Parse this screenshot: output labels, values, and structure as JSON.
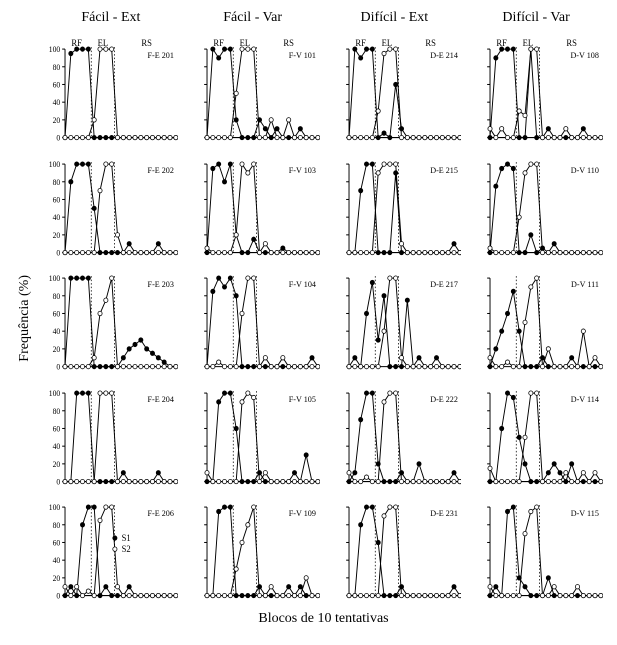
{
  "y_label": "Frequência (%)",
  "x_label": "Blocos de 10 tentativas",
  "col_headers": [
    "Fácil - Ext",
    "Fácil - Var",
    "Difícil - Ext",
    "Difícil - Var"
  ],
  "phase_labels": [
    "RF",
    "EL",
    "RS"
  ],
  "legend": {
    "s1": "S1",
    "s2": "S2",
    "show_in_panel": [
      4,
      0
    ]
  },
  "style": {
    "background_color": "#ffffff",
    "axis_color": "#000000",
    "s1_marker": {
      "fill": "#000000",
      "stroke": "#000000",
      "radius": 2.2
    },
    "s2_marker": {
      "fill": "#ffffff",
      "stroke": "#000000",
      "radius": 2.2
    },
    "line_color": "#000000",
    "line_width": 1.0,
    "divider_color": "#000000",
    "divider_dash": "1.5,2",
    "ylim": [
      0,
      100
    ],
    "ytick_step": 20,
    "n_points": 20,
    "phase_boundaries": [
      5,
      9
    ]
  },
  "panels": [
    [
      {
        "id": "F-E 201",
        "s1": [
          0,
          95,
          100,
          100,
          100,
          0,
          0,
          0,
          0,
          0,
          0,
          0,
          0,
          0,
          0,
          0,
          0,
          0,
          0,
          0
        ],
        "s2": [
          0,
          0,
          0,
          0,
          0,
          20,
          100,
          100,
          100,
          0,
          0,
          0,
          0,
          0,
          0,
          0,
          0,
          0,
          0,
          0
        ]
      },
      {
        "id": "F-V 101",
        "s1": [
          0,
          100,
          90,
          100,
          100,
          20,
          0,
          0,
          0,
          20,
          10,
          0,
          10,
          0,
          0,
          0,
          10,
          0,
          0,
          0
        ],
        "s2": [
          0,
          0,
          0,
          0,
          0,
          50,
          100,
          100,
          100,
          0,
          0,
          20,
          0,
          0,
          20,
          0,
          0,
          0,
          0,
          0
        ]
      },
      {
        "id": "D-E 214",
        "s1": [
          0,
          100,
          90,
          100,
          100,
          0,
          5,
          0,
          60,
          10,
          0,
          0,
          0,
          0,
          0,
          0,
          0,
          0,
          0,
          0
        ],
        "s2": [
          0,
          0,
          0,
          0,
          0,
          30,
          95,
          100,
          100,
          0,
          0,
          0,
          0,
          0,
          0,
          0,
          0,
          0,
          0,
          0
        ]
      },
      {
        "id": "D-V 108",
        "s1": [
          0,
          90,
          100,
          100,
          100,
          0,
          0,
          100,
          0,
          0,
          10,
          0,
          0,
          0,
          0,
          0,
          10,
          0,
          0,
          0
        ],
        "s2": [
          10,
          0,
          10,
          0,
          0,
          30,
          25,
          100,
          100,
          0,
          0,
          0,
          0,
          10,
          0,
          0,
          0,
          0,
          0,
          0
        ]
      }
    ],
    [
      {
        "id": "F-E 202",
        "s1": [
          0,
          80,
          100,
          100,
          100,
          50,
          0,
          0,
          0,
          0,
          0,
          10,
          0,
          0,
          0,
          0,
          10,
          0,
          0,
          0
        ],
        "s2": [
          0,
          0,
          0,
          0,
          0,
          0,
          70,
          100,
          100,
          20,
          0,
          0,
          0,
          0,
          0,
          0,
          0,
          0,
          0,
          0
        ]
      },
      {
        "id": "F-V 103",
        "s1": [
          0,
          95,
          100,
          80,
          100,
          20,
          0,
          0,
          15,
          0,
          0,
          0,
          0,
          5,
          0,
          0,
          0,
          0,
          0,
          0
        ],
        "s2": [
          5,
          0,
          0,
          0,
          0,
          20,
          100,
          90,
          100,
          0,
          10,
          0,
          0,
          0,
          0,
          0,
          0,
          0,
          0,
          0
        ]
      },
      {
        "id": "D-E 215",
        "s1": [
          0,
          0,
          70,
          100,
          100,
          0,
          0,
          0,
          90,
          0,
          0,
          0,
          0,
          0,
          0,
          0,
          0,
          0,
          10,
          0
        ],
        "s2": [
          0,
          0,
          0,
          0,
          0,
          90,
          100,
          100,
          100,
          10,
          0,
          0,
          0,
          0,
          0,
          0,
          0,
          0,
          0,
          0
        ]
      },
      {
        "id": "D-V 110",
        "s1": [
          0,
          75,
          95,
          100,
          95,
          0,
          0,
          20,
          0,
          5,
          0,
          10,
          0,
          0,
          0,
          0,
          0,
          0,
          0,
          0
        ],
        "s2": [
          5,
          0,
          0,
          0,
          0,
          40,
          90,
          100,
          100,
          0,
          0,
          0,
          0,
          0,
          0,
          0,
          0,
          0,
          0,
          0
        ]
      }
    ],
    [
      {
        "id": "F-E 203",
        "s1": [
          0,
          100,
          100,
          100,
          100,
          0,
          0,
          0,
          0,
          0,
          10,
          20,
          25,
          30,
          20,
          15,
          10,
          5,
          0,
          0
        ],
        "s2": [
          0,
          0,
          0,
          0,
          0,
          10,
          60,
          75,
          100,
          0,
          0,
          0,
          0,
          0,
          0,
          0,
          0,
          0,
          0,
          0
        ]
      },
      {
        "id": "F-V 104",
        "s1": [
          0,
          85,
          100,
          90,
          100,
          80,
          0,
          0,
          0,
          0,
          0,
          0,
          0,
          0,
          0,
          0,
          0,
          0,
          10,
          0
        ],
        "s2": [
          0,
          0,
          5,
          0,
          0,
          0,
          60,
          100,
          100,
          0,
          10,
          0,
          0,
          10,
          0,
          0,
          0,
          0,
          0,
          0
        ]
      },
      {
        "id": "D-E 217",
        "s1": [
          0,
          10,
          0,
          60,
          95,
          30,
          80,
          0,
          0,
          0,
          75,
          0,
          10,
          0,
          0,
          10,
          0,
          0,
          0,
          0
        ],
        "s2": [
          0,
          0,
          0,
          0,
          0,
          0,
          40,
          100,
          100,
          10,
          0,
          0,
          0,
          0,
          0,
          0,
          0,
          0,
          0,
          0
        ]
      },
      {
        "id": "D-V 111",
        "s1": [
          0,
          20,
          40,
          60,
          85,
          40,
          0,
          0,
          0,
          10,
          0,
          0,
          0,
          0,
          10,
          0,
          0,
          0,
          0,
          0
        ],
        "s2": [
          10,
          0,
          0,
          5,
          0,
          0,
          50,
          90,
          100,
          0,
          20,
          0,
          0,
          0,
          0,
          0,
          40,
          0,
          10,
          0
        ]
      }
    ],
    [
      {
        "id": "F-E 204",
        "s1": [
          0,
          0,
          100,
          100,
          100,
          0,
          0,
          0,
          0,
          0,
          10,
          0,
          0,
          0,
          0,
          0,
          10,
          0,
          0,
          0
        ],
        "s2": [
          0,
          0,
          0,
          0,
          0,
          0,
          100,
          100,
          100,
          0,
          0,
          0,
          0,
          0,
          0,
          0,
          0,
          0,
          0,
          0
        ]
      },
      {
        "id": "F-V 105",
        "s1": [
          0,
          0,
          90,
          100,
          100,
          60,
          0,
          0,
          0,
          10,
          0,
          0,
          0,
          0,
          0,
          10,
          0,
          30,
          0,
          0
        ],
        "s2": [
          10,
          0,
          0,
          0,
          0,
          0,
          90,
          100,
          95,
          0,
          10,
          0,
          0,
          0,
          0,
          0,
          0,
          0,
          0,
          0
        ]
      },
      {
        "id": "D-E 222",
        "s1": [
          0,
          10,
          70,
          100,
          100,
          20,
          0,
          0,
          0,
          10,
          0,
          0,
          20,
          0,
          0,
          0,
          0,
          0,
          10,
          0
        ],
        "s2": [
          10,
          0,
          0,
          5,
          0,
          0,
          90,
          100,
          100,
          0,
          0,
          0,
          0,
          0,
          0,
          0,
          0,
          0,
          0,
          0
        ]
      },
      {
        "id": "D-V 114",
        "s1": [
          0,
          0,
          60,
          100,
          95,
          50,
          20,
          0,
          0,
          0,
          10,
          20,
          10,
          0,
          20,
          0,
          0,
          0,
          0,
          0
        ],
        "s2": [
          15,
          0,
          0,
          0,
          0,
          0,
          50,
          100,
          100,
          0,
          0,
          0,
          0,
          10,
          0,
          0,
          10,
          0,
          10,
          0
        ]
      }
    ],
    [
      {
        "id": "F-E 206",
        "s1": [
          0,
          10,
          0,
          80,
          100,
          100,
          0,
          10,
          0,
          0,
          0,
          10,
          0,
          0,
          0,
          0,
          0,
          0,
          0,
          0
        ],
        "s2": [
          10,
          0,
          10,
          0,
          5,
          0,
          85,
          100,
          100,
          10,
          0,
          0,
          0,
          0,
          0,
          0,
          0,
          0,
          0,
          0
        ]
      },
      {
        "id": "F-V 109",
        "s1": [
          0,
          0,
          95,
          100,
          100,
          0,
          0,
          0,
          0,
          10,
          0,
          0,
          0,
          0,
          10,
          0,
          10,
          0,
          0,
          0
        ],
        "s2": [
          0,
          0,
          0,
          0,
          0,
          30,
          60,
          80,
          100,
          0,
          0,
          10,
          0,
          0,
          0,
          0,
          0,
          20,
          0,
          0
        ]
      },
      {
        "id": "D-E 231",
        "s1": [
          0,
          0,
          80,
          100,
          100,
          60,
          0,
          0,
          0,
          10,
          0,
          0,
          0,
          0,
          0,
          0,
          0,
          0,
          10,
          0
        ],
        "s2": [
          0,
          0,
          0,
          0,
          0,
          0,
          90,
          100,
          100,
          0,
          0,
          0,
          0,
          0,
          0,
          0,
          0,
          0,
          0,
          0
        ]
      },
      {
        "id": "D-V 115",
        "s1": [
          0,
          10,
          0,
          95,
          100,
          20,
          10,
          0,
          0,
          0,
          20,
          0,
          0,
          0,
          0,
          0,
          0,
          0,
          0,
          0
        ],
        "s2": [
          10,
          0,
          0,
          0,
          0,
          0,
          70,
          95,
          100,
          0,
          0,
          10,
          0,
          0,
          0,
          10,
          0,
          0,
          0,
          0
        ]
      }
    ]
  ]
}
